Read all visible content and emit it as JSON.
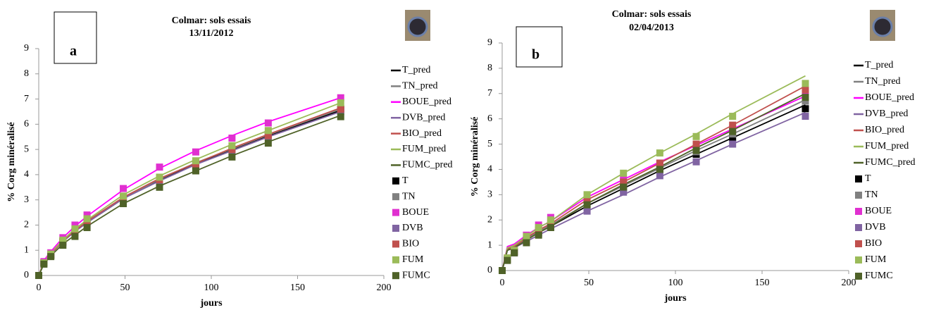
{
  "chart_data": [
    {
      "type": "line",
      "panel_label": "a",
      "title": "Colmar: sols essais",
      "subtitle": "13/11/2012",
      "x_label": "jours",
      "y_label": "% Corg minéralisé",
      "x": [
        0,
        3,
        7,
        14,
        21,
        28,
        49,
        70,
        91,
        112,
        133,
        175
      ],
      "xlim": [
        0,
        200
      ],
      "xticks": [
        0,
        50,
        100,
        150,
        200
      ],
      "ylim": [
        0,
        9
      ],
      "yticks": [
        0,
        1,
        2,
        3,
        4,
        5,
        6,
        7,
        8,
        9
      ],
      "series": [
        {
          "name": "T_pred",
          "kind": "line",
          "color": "#000000",
          "values": [
            0,
            0.5,
            0.85,
            1.35,
            1.75,
            2.1,
            3.05,
            3.8,
            4.45,
            5.0,
            5.55,
            6.55
          ]
        },
        {
          "name": "TN_pred",
          "kind": "line",
          "color": "#808080",
          "values": [
            0,
            0.5,
            0.85,
            1.36,
            1.76,
            2.12,
            3.07,
            3.82,
            4.47,
            5.02,
            5.58,
            6.6
          ]
        },
        {
          "name": "BOUE_pred",
          "kind": "line",
          "color": "#ff00ff",
          "values": [
            0,
            0.6,
            0.95,
            1.5,
            1.95,
            2.35,
            3.4,
            4.25,
            4.95,
            5.55,
            6.1,
            7.05
          ]
        },
        {
          "name": "DVB_pred",
          "kind": "line",
          "color": "#8064a2",
          "values": [
            0,
            0.5,
            0.85,
            1.35,
            1.75,
            2.1,
            3.05,
            3.75,
            4.4,
            4.95,
            5.5,
            6.5
          ]
        },
        {
          "name": "BIO_pred",
          "kind": "line",
          "color": "#c0504d",
          "values": [
            0,
            0.5,
            0.85,
            1.38,
            1.78,
            2.15,
            3.1,
            3.85,
            4.45,
            5.05,
            5.6,
            6.65
          ]
        },
        {
          "name": "FUM_pred",
          "kind": "line",
          "color": "#9bbb59",
          "values": [
            0,
            0.55,
            0.9,
            1.4,
            1.85,
            2.2,
            3.2,
            3.95,
            4.6,
            5.2,
            5.75,
            6.85
          ]
        },
        {
          "name": "FUMC_pred",
          "kind": "line",
          "color": "#4f6228",
          "values": [
            0,
            0.45,
            0.78,
            1.25,
            1.6,
            1.95,
            2.85,
            3.55,
            4.15,
            4.75,
            5.3,
            6.35
          ]
        },
        {
          "name": "T",
          "kind": "scatter",
          "color": "#000000",
          "values": [
            0,
            0.5,
            0.8,
            1.35,
            1.75,
            2.15,
            3.1,
            3.8,
            4.4,
            5.0,
            5.55,
            6.6
          ]
        },
        {
          "name": "TN",
          "kind": "scatter",
          "color": "#808080",
          "values": [
            0,
            0.5,
            0.8,
            1.35,
            1.75,
            2.15,
            3.1,
            3.85,
            4.45,
            5.0,
            5.6,
            6.6
          ]
        },
        {
          "name": "BOUE",
          "kind": "scatter",
          "color": "#e030d0",
          "values": [
            0,
            0.55,
            0.9,
            1.5,
            2.0,
            2.4,
            3.45,
            4.3,
            4.9,
            5.45,
            6.05,
            7.05
          ]
        },
        {
          "name": "DVB",
          "kind": "scatter",
          "color": "#8064a2",
          "values": [
            0,
            0.5,
            0.8,
            1.3,
            1.7,
            2.1,
            3.05,
            3.75,
            4.35,
            4.95,
            5.5,
            6.5
          ]
        },
        {
          "name": "BIO",
          "kind": "scatter",
          "color": "#c0504d",
          "values": [
            0,
            0.5,
            0.8,
            1.35,
            1.75,
            2.15,
            3.1,
            3.8,
            4.4,
            5.0,
            5.55,
            6.6
          ]
        },
        {
          "name": "FUM",
          "kind": "scatter",
          "color": "#9bbb59",
          "values": [
            0,
            0.5,
            0.85,
            1.4,
            1.85,
            2.25,
            3.15,
            3.9,
            4.55,
            5.15,
            5.75,
            6.85
          ]
        },
        {
          "name": "FUMC",
          "kind": "scatter",
          "color": "#4f6228",
          "values": [
            0,
            0.45,
            0.75,
            1.2,
            1.55,
            1.9,
            2.85,
            3.5,
            4.15,
            4.7,
            5.25,
            6.3
          ]
        }
      ]
    },
    {
      "type": "line",
      "panel_label": "b",
      "title": "Colmar: sols essais",
      "subtitle": "02/04/2013",
      "x_label": "jours",
      "y_label": "% Corg minéralisé",
      "x": [
        0,
        3,
        7,
        14,
        21,
        28,
        49,
        70,
        91,
        112,
        133,
        175
      ],
      "xlim": [
        0,
        200
      ],
      "xticks": [
        0,
        50,
        100,
        150,
        200
      ],
      "ylim": [
        0,
        9
      ],
      "yticks": [
        0,
        1,
        2,
        3,
        4,
        5,
        6,
        7,
        8,
        9
      ],
      "series": [
        {
          "name": "T_pred",
          "kind": "line",
          "color": "#000000",
          "values": [
            0,
            0.85,
            0.95,
            1.25,
            1.5,
            1.75,
            2.55,
            3.25,
            3.95,
            4.6,
            5.25,
            6.55
          ]
        },
        {
          "name": "TN_pred",
          "kind": "line",
          "color": "#808080",
          "values": [
            0,
            0.85,
            0.95,
            1.25,
            1.55,
            1.8,
            2.65,
            3.35,
            4.05,
            4.75,
            5.4,
            6.75
          ]
        },
        {
          "name": "BOUE_pred",
          "kind": "line",
          "color": "#ff00ff",
          "values": [
            0,
            0.95,
            1.05,
            1.4,
            1.7,
            1.95,
            2.9,
            3.6,
            4.3,
            4.95,
            5.6,
            6.9
          ]
        },
        {
          "name": "DVB_pred",
          "kind": "line",
          "color": "#8064a2",
          "values": [
            0,
            0.8,
            0.9,
            1.15,
            1.4,
            1.65,
            2.35,
            3.0,
            3.7,
            4.35,
            5.0,
            6.25
          ]
        },
        {
          "name": "BIO_pred",
          "kind": "line",
          "color": "#c0504d",
          "values": [
            0,
            0.85,
            0.95,
            1.3,
            1.6,
            1.85,
            2.8,
            3.5,
            4.25,
            5.0,
            5.75,
            7.3
          ]
        },
        {
          "name": "FUM_pred",
          "kind": "line",
          "color": "#9bbb59",
          "values": [
            0,
            0.9,
            1.0,
            1.35,
            1.7,
            1.95,
            3.0,
            3.85,
            4.65,
            5.4,
            6.2,
            7.7
          ]
        },
        {
          "name": "FUMC_pred",
          "kind": "line",
          "color": "#4f6228",
          "values": [
            0,
            0.8,
            0.9,
            1.2,
            1.5,
            1.75,
            2.65,
            3.4,
            4.1,
            4.85,
            5.55,
            7.0
          ]
        },
        {
          "name": "T",
          "kind": "scatter",
          "color": "#000000",
          "values": [
            0,
            0.45,
            0.75,
            1.2,
            1.5,
            1.75,
            2.6,
            3.25,
            4.0,
            4.6,
            5.25,
            6.4
          ]
        },
        {
          "name": "TN",
          "kind": "scatter",
          "color": "#808080",
          "values": [
            0,
            0.45,
            0.75,
            1.2,
            1.55,
            1.8,
            2.65,
            3.3,
            4.05,
            4.7,
            5.4,
            6.7
          ]
        },
        {
          "name": "BOUE",
          "kind": "scatter",
          "color": "#e030d0",
          "values": [
            0,
            0.5,
            0.8,
            1.4,
            1.8,
            2.1,
            2.95,
            3.6,
            4.25,
            4.95,
            5.6,
            6.9
          ]
        },
        {
          "name": "DVB",
          "kind": "scatter",
          "color": "#8064a2",
          "values": [
            0,
            0.45,
            0.7,
            1.15,
            1.45,
            1.7,
            2.35,
            3.1,
            3.75,
            4.3,
            5.0,
            6.1
          ]
        },
        {
          "name": "BIO",
          "kind": "scatter",
          "color": "#c0504d",
          "values": [
            0,
            0.45,
            0.75,
            1.25,
            1.6,
            1.85,
            2.75,
            3.5,
            4.25,
            5.0,
            5.75,
            7.15
          ]
        },
        {
          "name": "FUM",
          "kind": "scatter",
          "color": "#9bbb59",
          "values": [
            0,
            0.5,
            0.8,
            1.35,
            1.7,
            2.0,
            3.0,
            3.85,
            4.65,
            5.3,
            6.1,
            7.4
          ]
        },
        {
          "name": "FUMC",
          "kind": "scatter",
          "color": "#4f6228",
          "values": [
            0,
            0.4,
            0.7,
            1.1,
            1.4,
            1.7,
            2.6,
            3.3,
            4.0,
            4.75,
            5.5,
            6.85
          ]
        }
      ]
    }
  ]
}
